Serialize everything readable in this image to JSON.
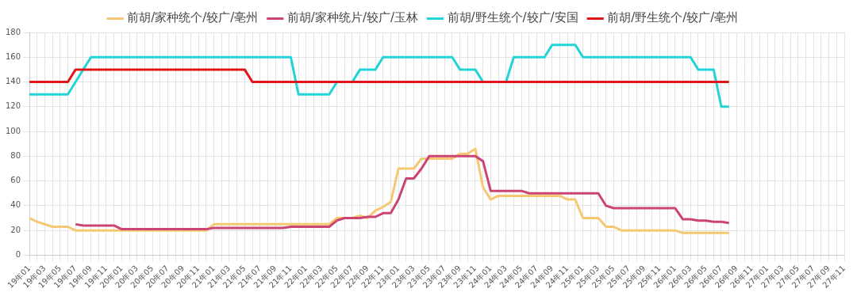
{
  "chart_data": {
    "type": "line",
    "categories": [
      "19年01",
      null,
      "19年03",
      null,
      "19年05",
      null,
      "19年07",
      null,
      "19年09",
      null,
      "19年11",
      null,
      "20年01",
      null,
      "20年03",
      null,
      "20年05",
      null,
      "20年07",
      null,
      "20年09",
      null,
      "20年11",
      null,
      "21年01",
      null,
      "21年03",
      null,
      "21年05",
      null,
      "21年07",
      null,
      "21年09",
      null,
      "21年11",
      null,
      "22年01",
      null,
      "22年03",
      null,
      "22年05",
      null,
      "22年07",
      null,
      "22年09",
      null,
      "22年11",
      null,
      "23年01",
      null,
      "23年03",
      null,
      "23年05",
      null,
      "23年07",
      null,
      "23年09",
      null,
      "23年11",
      null,
      "24年01",
      null,
      "24年03",
      null,
      "24年05",
      null,
      "24年07",
      null,
      "24年09",
      null,
      "24年11",
      null,
      "25年01",
      null,
      "25年03",
      null,
      "25年05",
      null,
      "25年07",
      null,
      "25年09",
      null,
      "25年11",
      null,
      "26年01",
      null,
      "26年03",
      null,
      "26年05",
      null,
      "26年07",
      null,
      "26年09",
      null,
      "26年11",
      null,
      "27年01",
      null,
      "27年03",
      null,
      "27年05",
      null,
      "27年07",
      null,
      "27年09",
      null,
      "27年11"
    ],
    "series": [
      {
        "name": "前胡/家种统个/较广/亳州",
        "color": "#f7c873",
        "values": [
          30,
          27,
          25,
          23,
          23,
          23,
          20,
          20,
          20,
          20,
          20,
          20,
          20,
          20,
          20,
          20,
          20,
          20,
          20,
          20,
          20,
          20,
          20,
          20,
          25,
          25,
          25,
          25,
          25,
          25,
          25,
          25,
          25,
          25,
          25,
          25,
          25,
          25,
          25,
          25,
          30,
          30,
          30,
          32,
          30,
          36,
          39,
          43,
          70,
          70,
          70,
          78,
          78,
          78,
          78,
          78,
          82,
          82,
          86,
          55,
          45,
          48,
          48,
          48,
          48,
          48,
          48,
          48,
          48,
          48,
          45,
          45,
          30,
          30,
          30,
          23,
          23,
          20,
          20,
          20,
          20,
          20,
          20,
          20,
          20,
          18,
          18,
          18,
          18,
          18,
          18,
          18,
          null,
          null,
          null,
          null,
          null,
          null,
          null,
          null,
          null,
          null,
          null,
          null,
          null,
          null,
          null
        ]
      },
      {
        "name": "前胡/家种统片/较广/玉林",
        "color": "#cc4474",
        "values": [
          null,
          null,
          null,
          null,
          null,
          null,
          25,
          24,
          24,
          24,
          24,
          24,
          21,
          21,
          21,
          21,
          21,
          21,
          21,
          21,
          21,
          21,
          21,
          21,
          22,
          22,
          22,
          22,
          22,
          22,
          22,
          22,
          22,
          22,
          23,
          23,
          23,
          23,
          23,
          23,
          28,
          30,
          30,
          30,
          31,
          31,
          34,
          34,
          45,
          62,
          62,
          70,
          80,
          80,
          80,
          80,
          80,
          80,
          80,
          76,
          52,
          52,
          52,
          52,
          52,
          50,
          50,
          50,
          50,
          50,
          50,
          50,
          50,
          50,
          50,
          40,
          38,
          38,
          38,
          38,
          38,
          38,
          38,
          38,
          38,
          29,
          29,
          28,
          28,
          27,
          27,
          26,
          null,
          null,
          null,
          null,
          null,
          null,
          null,
          null,
          null,
          null,
          null,
          null,
          null,
          null,
          null
        ]
      },
      {
        "name": "前胡/野生统个/较广/安国",
        "color": "#22d3d8",
        "values": [
          130,
          130,
          130,
          130,
          130,
          130,
          140,
          150,
          160,
          160,
          160,
          160,
          160,
          160,
          160,
          160,
          160,
          160,
          160,
          160,
          160,
          160,
          160,
          160,
          160,
          160,
          160,
          160,
          160,
          160,
          160,
          160,
          160,
          160,
          160,
          130,
          130,
          130,
          130,
          130,
          140,
          140,
          140,
          150,
          150,
          150,
          160,
          160,
          160,
          160,
          160,
          160,
          160,
          160,
          160,
          160,
          150,
          150,
          150,
          140,
          140,
          140,
          140,
          160,
          160,
          160,
          160,
          160,
          170,
          170,
          170,
          170,
          160,
          160,
          160,
          160,
          160,
          160,
          160,
          160,
          160,
          160,
          160,
          160,
          160,
          160,
          160,
          150,
          150,
          150,
          120,
          120,
          null,
          null,
          null,
          null,
          null,
          null,
          null,
          null,
          null,
          null,
          null,
          null,
          null,
          null,
          null
        ]
      },
      {
        "name": "前胡/野生统个/较广/亳州",
        "color": "#e0161a",
        "values": [
          140,
          140,
          140,
          140,
          140,
          140,
          150,
          150,
          150,
          150,
          150,
          150,
          150,
          150,
          150,
          150,
          150,
          150,
          150,
          150,
          150,
          150,
          150,
          150,
          150,
          150,
          150,
          150,
          150,
          140,
          140,
          140,
          140,
          140,
          140,
          140,
          140,
          140,
          140,
          140,
          140,
          140,
          140,
          140,
          140,
          140,
          140,
          140,
          140,
          140,
          140,
          140,
          140,
          140,
          140,
          140,
          140,
          140,
          140,
          140,
          140,
          140,
          140,
          140,
          140,
          140,
          140,
          140,
          140,
          140,
          140,
          140,
          140,
          140,
          140,
          140,
          140,
          140,
          140,
          140,
          140,
          140,
          140,
          140,
          140,
          140,
          140,
          140,
          140,
          140,
          140,
          140,
          null,
          null,
          null,
          null,
          null,
          null,
          null,
          null,
          null,
          null,
          null,
          null,
          null,
          null,
          null
        ]
      }
    ],
    "ylim": [
      0,
      180
    ],
    "yticks": [
      0,
      20,
      40,
      60,
      80,
      100,
      120,
      140,
      160,
      180
    ],
    "grid": true,
    "legend": "top",
    "marker": "none",
    "line_style": "solid"
  }
}
